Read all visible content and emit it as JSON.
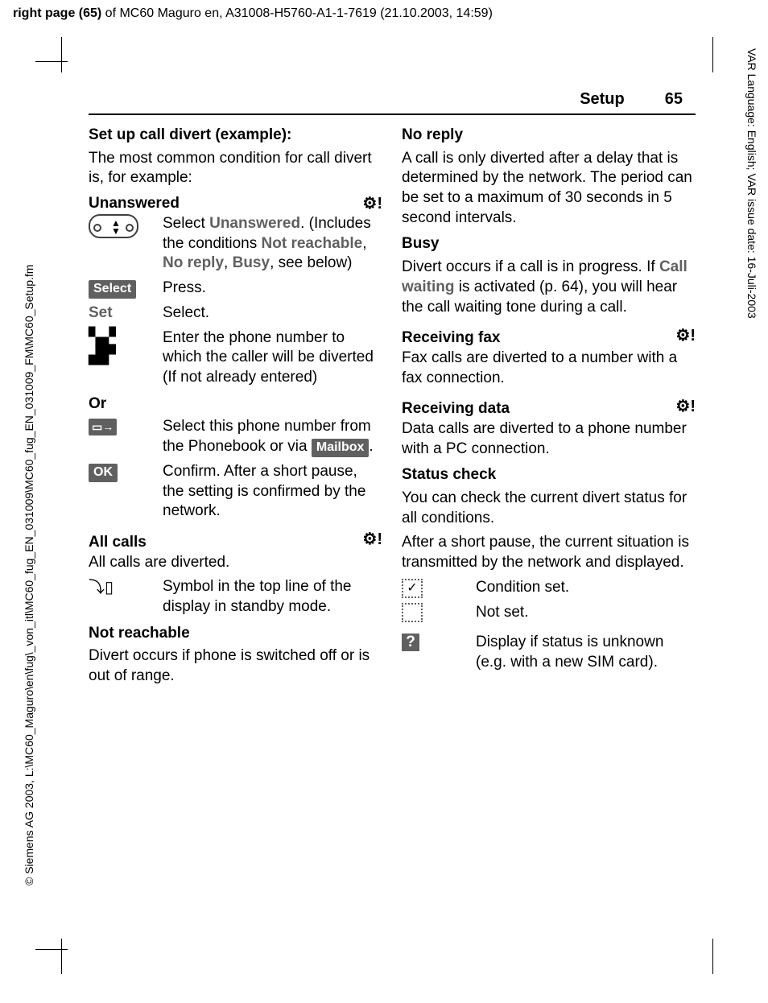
{
  "top_header": {
    "prefix_bold": "right page (65)",
    "rest": " of MC60 Maguro en, A31008-H5760-A1-1-7619 (21.10.2003, 14:59)"
  },
  "side_left": "© Siemens AG 2003, L:\\MC60_Maguro\\en\\fug\\_von_itl\\MC60_fug_EN_031009\\MC60_fug_EN_031009_FM\\MC60_Setup.fm",
  "side_right": "VAR Language: English; VAR issue date: 16-Juli-2003",
  "page_header": {
    "section": "Setup",
    "num": "65"
  },
  "left": {
    "h_setup": "Set up call divert (example):",
    "p_common": "The most common condition for call divert is, for example:",
    "h_unans": "Unanswered",
    "r_nav": {
      "pre": "Select ",
      "bold": "Unanswered",
      "post1": ". (Includes the conditions ",
      "b2": "Not reachable",
      "sep1": ", ",
      "b3": "No reply",
      "sep2": ", ",
      "b4": "Busy",
      "post2": ", see below)"
    },
    "select_key": "Select",
    "select_tx": "Press.",
    "set_label": "Set",
    "set_tx": "Select.",
    "keypad_tx": "Enter the phone number to which the caller will be diverted (If not already entered)",
    "or": "Or",
    "pb_tx_pre": "Select this phone number from the Phonebook or via ",
    "mailbox_key": "Mailbox",
    "pb_tx_post": ".",
    "ok_key": "OK",
    "ok_tx": "Confirm. After a short pause, the setting is confirmed by the network.",
    "h_all": "All calls",
    "p_all": "All calls are diverted.",
    "divert_tx": "Symbol in the top line of the display in standby mode.",
    "h_notreach": "Not reachable",
    "p_notreach": "Divert occurs if phone is switched off or is out of range."
  },
  "right": {
    "h_noreply": "No reply",
    "p_noreply": "A call is only diverted after a delay that is determined by the network. The period can be set to a maximum of 30 seconds in 5 second intervals.",
    "h_busy": "Busy",
    "p_busy_pre": "Divert occurs if a call is in progress. If ",
    "p_busy_b": "Call waiting",
    "p_busy_post": " is activated (p. 64), you will hear the call waiting tone during a call.",
    "h_fax": "Receiving fax",
    "p_fax": "Fax calls are diverted to a number with a fax connection.",
    "h_data": "Receiving data",
    "p_data": "Data calls are diverted to a phone number with a PC connection.",
    "h_status": "Status check",
    "p_status1": "You can check the current divert status for all conditions.",
    "p_status2": "After a short pause, the current situation is transmitted by the network and displayed.",
    "chk_set": "Condition set.",
    "chk_notset": "Not set.",
    "chk_unk": "Display if status is unknown (e.g. with a new SIM card)."
  },
  "icons": {
    "network": "⚙!",
    "book_arrow": "▭➔",
    "keypad": "⌨",
    "divert_top": "⤵☎",
    "check": "✓",
    "question": "?"
  },
  "colors": {
    "text": "#000000",
    "grey": "#606060",
    "bg": "#ffffff"
  },
  "fonts": {
    "body_pt": 19,
    "header_pt": 20,
    "small_pt": 14
  }
}
